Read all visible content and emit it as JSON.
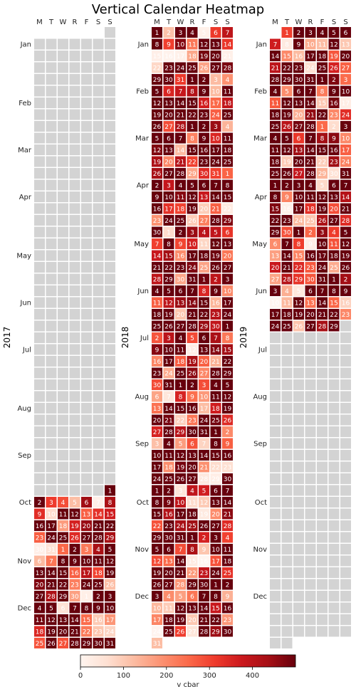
{
  "chart_data": {
    "type": "heatmap",
    "title": "Vertical Calendar Heatmap",
    "weekday_labels": [
      "M",
      "T",
      "W",
      "R",
      "F",
      "S",
      "S"
    ],
    "month_labels": [
      "Jan",
      "Feb",
      "Mar",
      "Apr",
      "May",
      "Jun",
      "Jul",
      "Aug",
      "Sep",
      "Oct",
      "Nov",
      "Dec"
    ],
    "years": [
      "2017",
      "2018",
      "2019"
    ],
    "data_ranges": [
      {
        "year": "2017",
        "start": "2017-10-01",
        "end": "2017-12-31"
      },
      {
        "year": "2018",
        "start": "2018-01-01",
        "end": "2018-12-31"
      },
      {
        "year": "2019",
        "start": "2019-01-01",
        "end": "2019-06-29"
      }
    ],
    "value_range": [
      0,
      500
    ],
    "colormap": "Reds",
    "missing_color": "#d3d3d3",
    "colorbar": {
      "label": "v cbar",
      "ticks": [
        0,
        100,
        200,
        300,
        400
      ],
      "orientation": "horizontal",
      "placement": "bottom"
    }
  }
}
